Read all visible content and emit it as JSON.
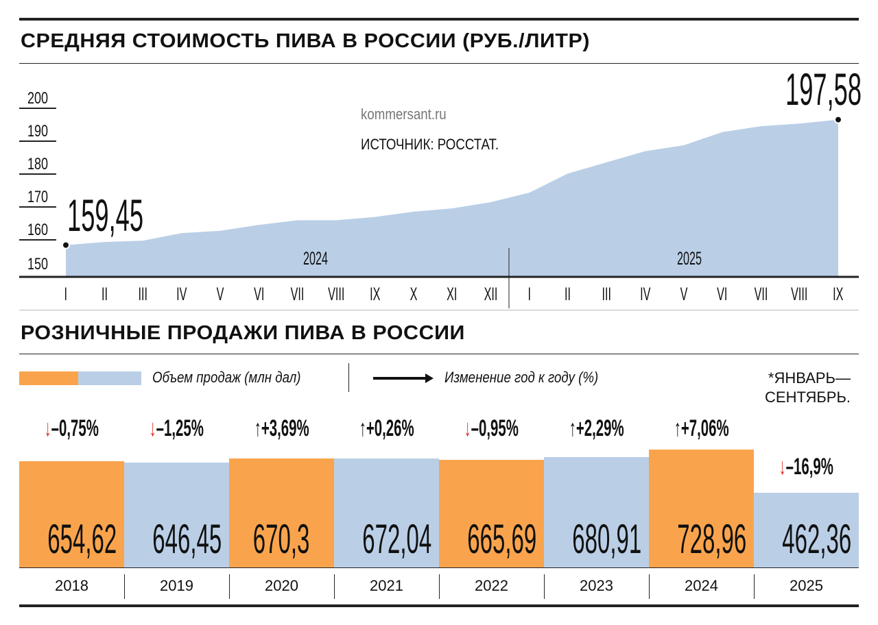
{
  "chart_data": [
    {
      "type": "area",
      "title": "СРЕДНЯЯ СТОИМОСТЬ ПИВА В РОССИИ (РУБ./ЛИТР)",
      "source": "ИСТОЧНИК: РОССТАТ.",
      "watermark": "kommersant.ru",
      "year_labels": [
        "2024",
        "2025"
      ],
      "categories": [
        "I",
        "II",
        "III",
        "IV",
        "V",
        "VI",
        "VII",
        "VIII",
        "IX",
        "X",
        "XI",
        "XII",
        "I",
        "II",
        "III",
        "IV",
        "V",
        "VI",
        "VII",
        "VIII",
        "IX"
      ],
      "values": [
        159.45,
        160.4,
        160.8,
        163.1,
        163.8,
        165.6,
        167.0,
        167.0,
        168.0,
        169.6,
        170.6,
        172.5,
        175.4,
        181.2,
        184.6,
        188.0,
        189.8,
        193.8,
        195.6,
        196.4,
        197.58
      ],
      "start_label": "159,45",
      "end_label": "197,58",
      "yticks": [
        "150",
        "160",
        "170",
        "180",
        "190",
        "200"
      ],
      "ylim": [
        150,
        200
      ],
      "color": "#bacfe6"
    },
    {
      "type": "bar",
      "title": "РОЗНИЧНЫЕ ПРОДАЖИ ПИВА В РОССИИ",
      "legend": {
        "volume": "Объем продаж (млн дал)",
        "change": "Изменение год к году (%)"
      },
      "footnote": [
        "*ЯНВАРЬ—",
        "СЕНТЯБРЬ."
      ],
      "categories": [
        "2018",
        "2019",
        "2020",
        "2021",
        "2022",
        "2023",
        "2024",
        "2025"
      ],
      "values": [
        654.62,
        646.45,
        670.3,
        672.04,
        665.69,
        680.91,
        728.96,
        462.36
      ],
      "value_labels": [
        "654,62",
        "646,45",
        "670,3",
        "672,04",
        "665,69",
        "680,91",
        "728,96",
        "462,36"
      ],
      "changes": [
        {
          "dir": "down",
          "text": "–0,75%"
        },
        {
          "dir": "down",
          "text": "–1,25%"
        },
        {
          "dir": "up",
          "text": "+3,69%"
        },
        {
          "dir": "up",
          "text": "+0,26%"
        },
        {
          "dir": "down",
          "text": "–0,95%"
        },
        {
          "dir": "up",
          "text": "+2,29%"
        },
        {
          "dir": "up",
          "text": "+7,06%"
        },
        {
          "dir": "down",
          "text": "–16,9%"
        }
      ],
      "colors": {
        "orange": "#f9a44d",
        "blue": "#bacfe6",
        "down_arrow": "#e3302a",
        "up_arrow": "#111111"
      }
    }
  ]
}
